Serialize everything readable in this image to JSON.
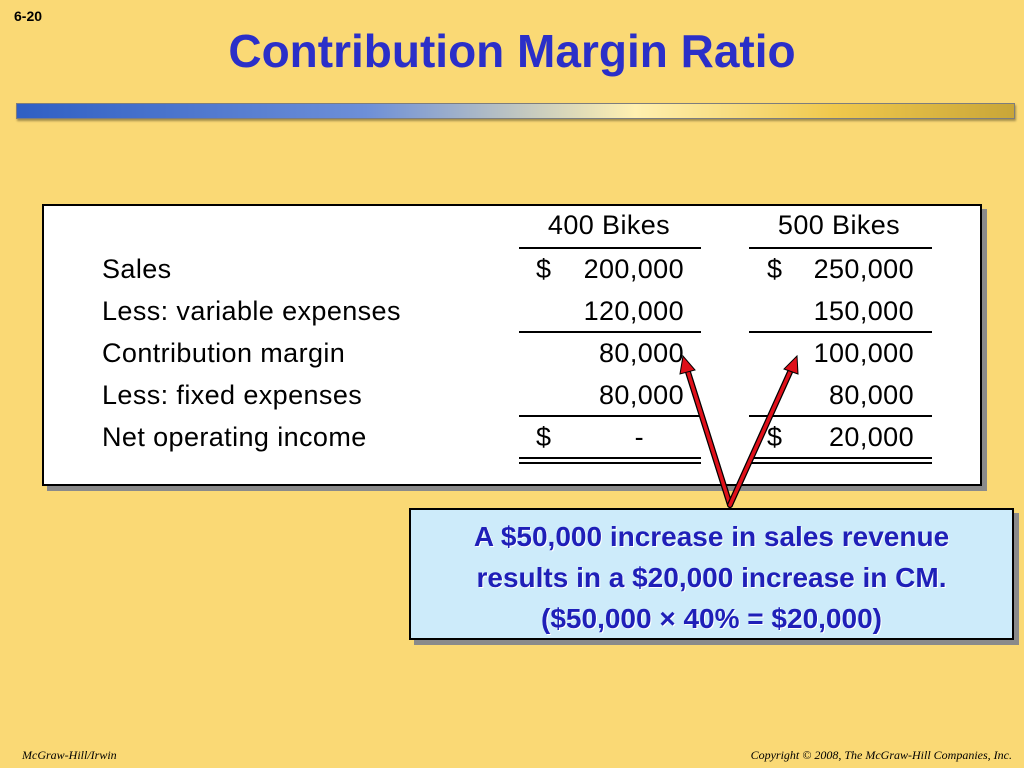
{
  "slide_number": "6-20",
  "title": "Contribution Margin Ratio",
  "table": {
    "headers": [
      "400 Bikes",
      "500 Bikes"
    ],
    "rows": [
      {
        "label": "Sales",
        "col1_dollar": "$",
        "col1": "200,000",
        "col2_dollar": "$",
        "col2": "250,000"
      },
      {
        "label": "Less: variable expenses",
        "col1_dollar": "",
        "col1": "120,000",
        "col2_dollar": "",
        "col2": "150,000"
      },
      {
        "label": "Contribution margin",
        "col1_dollar": "",
        "col1": "80,000",
        "col2_dollar": "",
        "col2": "100,000"
      },
      {
        "label": "Less: fixed expenses",
        "col1_dollar": "",
        "col1": "80,000",
        "col2_dollar": "",
        "col2": "80,000"
      },
      {
        "label": "Net operating income",
        "col1_dollar": "$",
        "col1": "-",
        "col2_dollar": "$",
        "col2": "20,000"
      }
    ]
  },
  "callout": {
    "line1": "A $50,000 increase in sales revenue",
    "line2": "results in a $20,000 increase in CM.",
    "line3": "($50,000 × 40% = $20,000)"
  },
  "colors": {
    "background": "#FAD975",
    "title": "#2B2FC8",
    "callout_bg": "#CDEBFA",
    "callout_text": "#1F1FB8",
    "arrow": "#E0101A"
  },
  "footer": {
    "left": "McGraw-Hill/Irwin",
    "right": "Copyright © 2008, The McGraw-Hill Companies, Inc."
  }
}
